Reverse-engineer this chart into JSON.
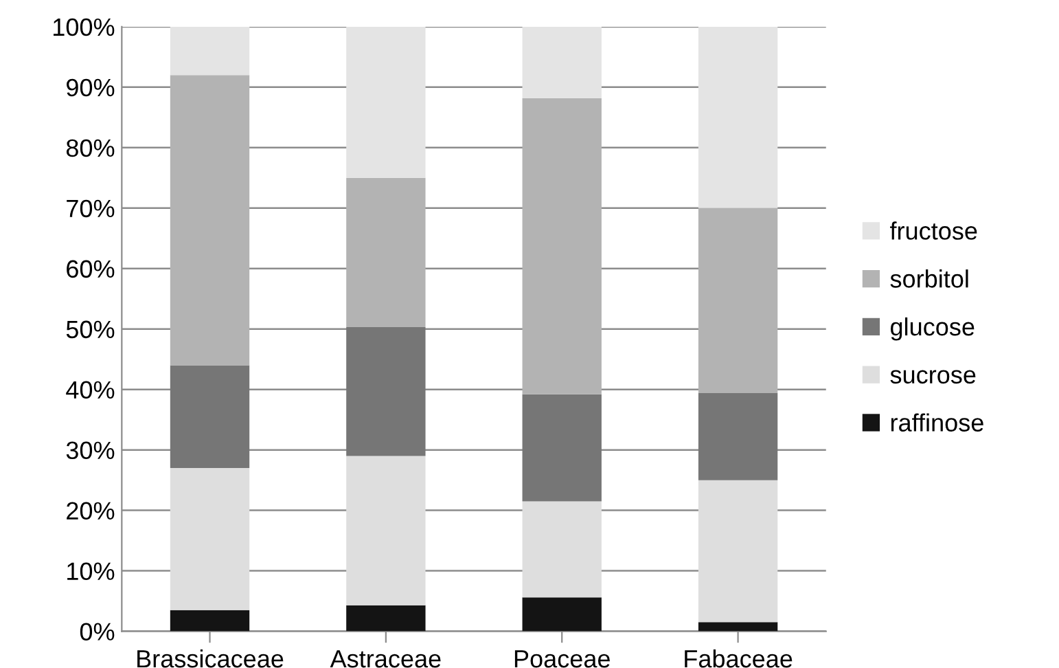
{
  "chart_data": {
    "type": "bar",
    "stacked": true,
    "categories": [
      "Brassicaceae",
      "Astraceae",
      "Poaceae",
      "Fabaceae"
    ],
    "series": [
      {
        "name": "raffinose",
        "color": "#141414",
        "values": [
          3.5,
          4.3,
          5.6,
          1.5
        ]
      },
      {
        "name": "sucrose",
        "color": "#dedede",
        "values": [
          23.5,
          24.7,
          15.9,
          23.5
        ]
      },
      {
        "name": "glucose",
        "color": "#767676",
        "values": [
          17,
          21.3,
          17.7,
          14.4
        ]
      },
      {
        "name": "sorbitol",
        "color": "#b3b3b3",
        "values": [
          48,
          24.7,
          49,
          30.6
        ]
      },
      {
        "name": "fructose",
        "color": "#e4e4e4",
        "values": [
          8,
          25,
          11.8,
          30
        ]
      }
    ],
    "ylim": [
      0,
      100
    ],
    "yticks": [
      {
        "value": 0,
        "label": "0%"
      },
      {
        "value": 10,
        "label": "10%"
      },
      {
        "value": 20,
        "label": "20%"
      },
      {
        "value": 30,
        "label": "30%"
      },
      {
        "value": 40,
        "label": "40%"
      },
      {
        "value": 50,
        "label": "50%"
      },
      {
        "value": 60,
        "label": "60%"
      },
      {
        "value": 70,
        "label": "70%"
      },
      {
        "value": 80,
        "label": "80%"
      },
      {
        "value": 90,
        "label": "90%"
      },
      {
        "value": 100,
        "label": "100%"
      }
    ],
    "grid": "y",
    "legend": "right"
  }
}
